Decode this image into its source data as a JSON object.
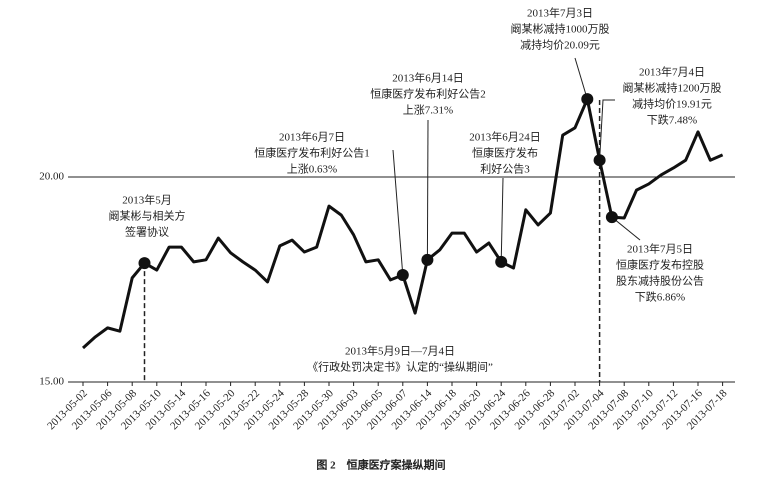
{
  "chart_data": {
    "type": "line",
    "title": "图 2　恒康医疗案操纵期间",
    "categories": [
      "2013-05-02",
      null,
      "2013-05-06",
      null,
      "2013-05-08",
      null,
      "2013-05-10",
      null,
      "2013-05-14",
      null,
      "2013-05-16",
      null,
      "2013-05-20",
      null,
      "2013-05-22",
      null,
      "2013-05-24",
      null,
      "2013-05-28",
      null,
      "2013-05-30",
      null,
      "2013-06-03",
      null,
      "2013-06-05",
      null,
      "2013-06-07",
      null,
      "2013-06-14",
      null,
      "2013-06-18",
      null,
      "2013-06-20",
      null,
      "2013-06-24",
      null,
      "2013-06-26",
      null,
      "2013-06-28",
      null,
      "2013-07-02",
      null,
      "2013-07-04",
      null,
      "2013-07-08",
      null,
      "2013-07-10",
      null,
      "2013-07-12",
      null,
      "2013-07-16",
      null,
      "2013-07-18"
    ],
    "series": [
      {
        "color": "#111111",
        "values": [
          15.83,
          16.1,
          16.32,
          16.24,
          17.54,
          17.9,
          17.73,
          18.29,
          18.29,
          17.93,
          17.98,
          18.51,
          18.15,
          17.93,
          17.73,
          17.44,
          18.32,
          18.46,
          18.17,
          18.29,
          19.29,
          19.07,
          18.59,
          17.93,
          17.98,
          17.49,
          17.61,
          16.68,
          17.98,
          18.22,
          18.63,
          18.63,
          18.17,
          18.39,
          17.93,
          17.78,
          19.2,
          18.83,
          19.12,
          21.02,
          21.2,
          21.9,
          20.41,
          19.02,
          19.0,
          19.68,
          19.83,
          20.05,
          20.22,
          20.41,
          21.1,
          20.41,
          20.54
        ]
      }
    ],
    "ylim": [
      15,
      23
    ],
    "yticks": [
      {
        "value": 15,
        "label": "15.00"
      },
      {
        "value": 20,
        "label": "20.00"
      }
    ],
    "annotations": [
      {
        "lines": [
          "2013年5月",
          "阚某彬与相关方",
          "签署协议"
        ]
      },
      {
        "lines": [
          "2013年6月7日",
          "恒康医疗发布利好公告1",
          "上涨0.63%"
        ]
      },
      {
        "lines": [
          "2013年6月14日",
          "恒康医疗发布利好公告2",
          "上涨7.31%"
        ]
      },
      {
        "lines": [
          "2013年6月24日",
          "恒康医疗发布",
          "利好公告3"
        ]
      },
      {
        "lines": [
          "2013年7月3日",
          "阚某彬减持1000万股",
          "减持均价20.09元"
        ]
      },
      {
        "lines": [
          "2013年7月4日",
          "阚某彬减持1200万股",
          "减持均价19.91元",
          "下跌7.48%"
        ]
      },
      {
        "lines": [
          "2013年7月5日",
          "恒康医疗发布控股",
          "股东减持股份公告",
          "下跌6.86%"
        ]
      },
      {
        "lines": [
          "2013年5月9日—7月4日",
          "《行政处罚决定书》认定的“操纵期间”"
        ]
      }
    ]
  }
}
